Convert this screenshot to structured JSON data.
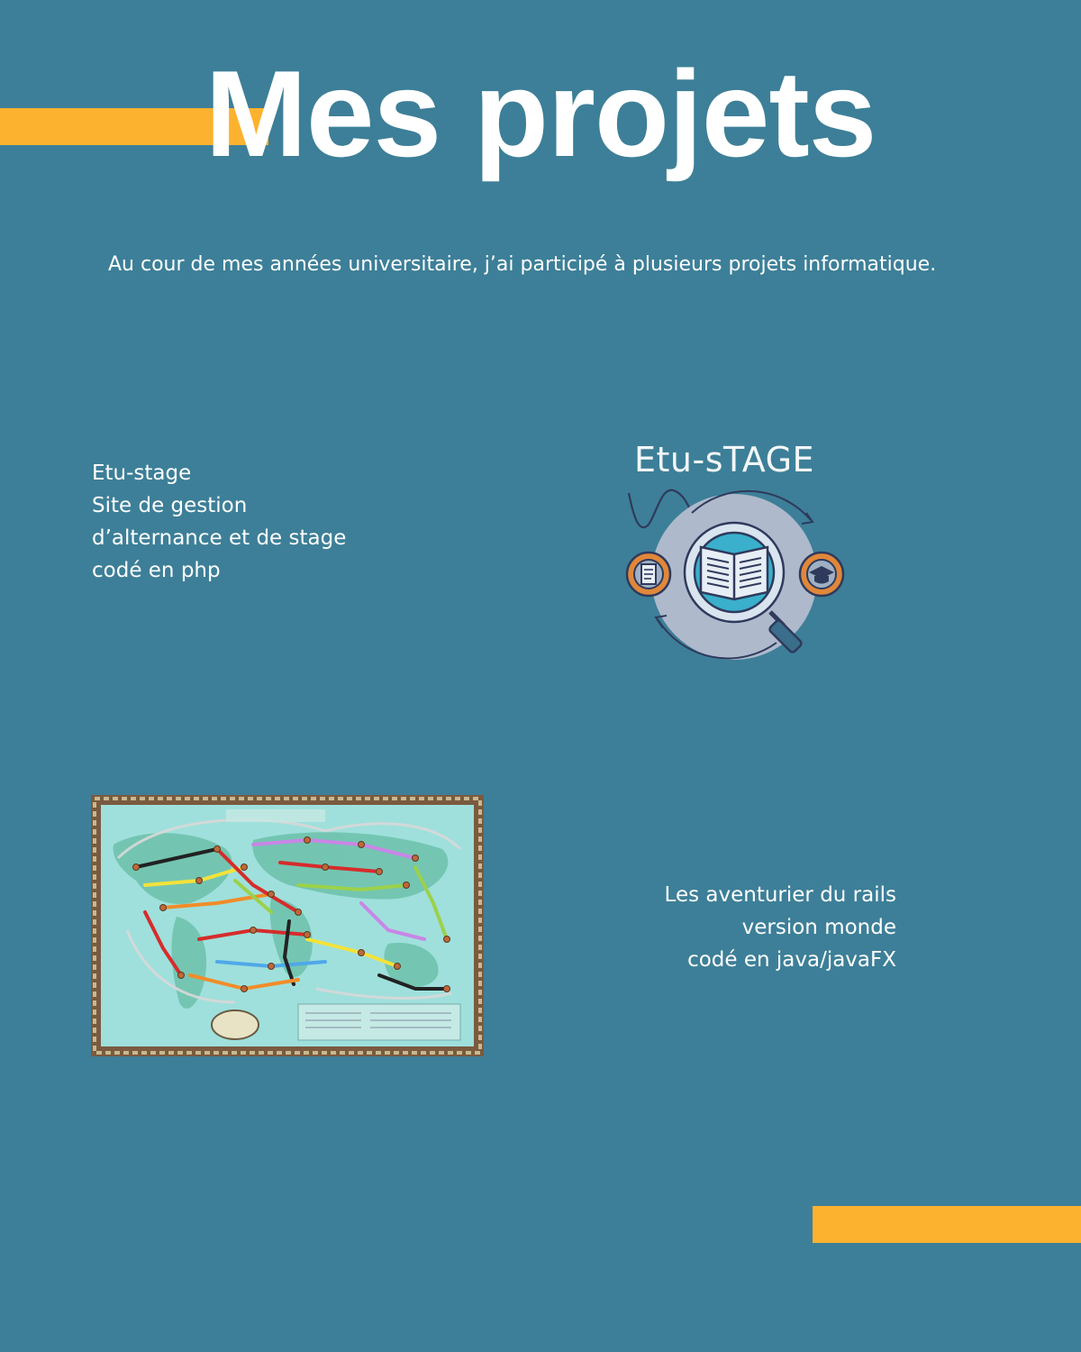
{
  "page": {
    "title": "Mes projets",
    "intro": "Au cour de mes années universitaire, j’ai participé à plusieurs projets informatique."
  },
  "projects": [
    {
      "lines": [
        "Etu-stage",
        "Site de gestion",
        "d’alternance et de stage",
        "codé en php"
      ],
      "logo_text": "Etu-sTAGE",
      "icons": [
        "book-icon",
        "magnifier-icon",
        "document-icon",
        "graduation-cap-icon",
        "cycle-arrows-icon"
      ]
    },
    {
      "lines": [
        "Les aventurier du rails",
        "version monde",
        "codé en java/javaFX"
      ],
      "image": "world-railway-map-board"
    }
  ],
  "colors": {
    "background": "#3d7f98",
    "accent": "#fdb22f",
    "text": "#ffffff"
  }
}
